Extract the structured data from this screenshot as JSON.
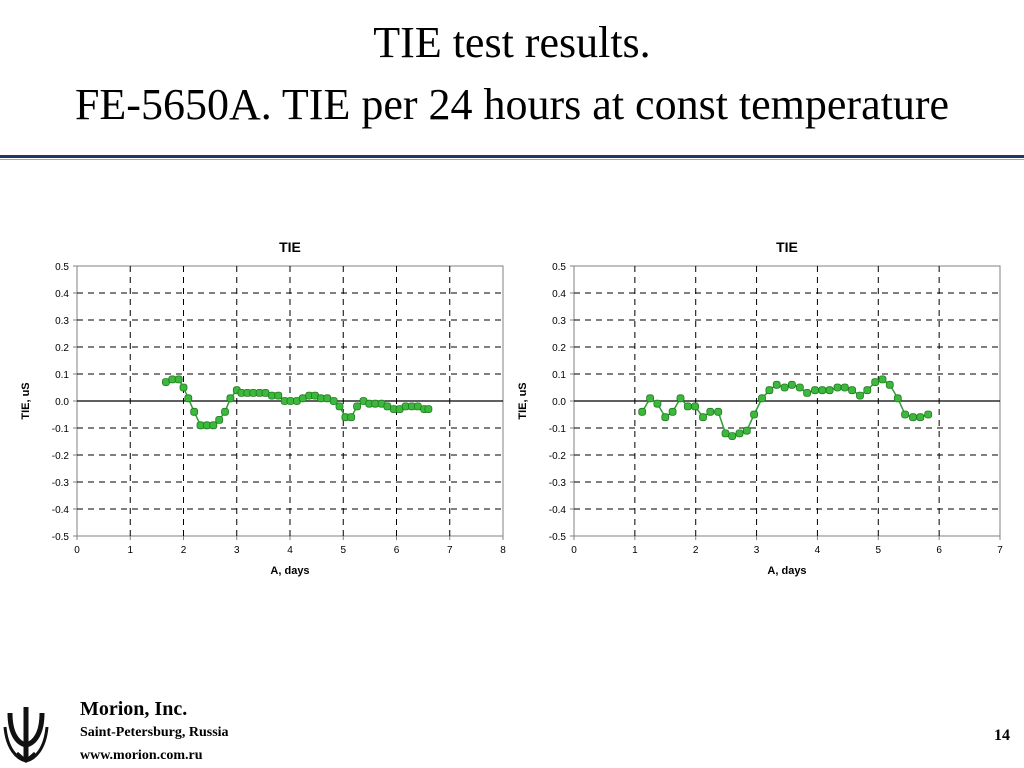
{
  "slide": {
    "title_line1": "TIE test results.",
    "title_line2": "FE-5650A. TIE per 24 hours at const temperature",
    "rule_color": "#1f3864",
    "page_number": "14"
  },
  "footer": {
    "company": "Morion, Inc.",
    "city": "Saint-Petersburg, Russia",
    "website": "www.morion.com.ru",
    "logo_icon": "morion-trident-logo"
  },
  "chart_data": [
    {
      "type": "scatter",
      "title": "TIE",
      "xlabel": "A, days",
      "ylabel": "TIE, uS",
      "xlim": [
        0,
        8
      ],
      "ylim": [
        -0.5,
        0.5
      ],
      "xticks": [
        0,
        1,
        2,
        3,
        4,
        5,
        6,
        7,
        8
      ],
      "yticks": [
        0.5,
        0.4,
        0.3,
        0.2,
        0.1,
        0.0,
        -0.1,
        -0.2,
        -0.3,
        -0.4,
        -0.5
      ],
      "ytick_labels": [
        "0.5",
        "0.4",
        "0.3",
        "0.2",
        "0.1",
        "0.0",
        "-0.1",
        "-0.2",
        "-0.3",
        "-0.4",
        "-0.5"
      ],
      "grid": "dashed",
      "legend": "none",
      "marker_color": "#3cb83c",
      "line_color": "#2e9e2e",
      "series": [
        {
          "x": [
            1.67,
            1.79,
            1.91,
            2.0,
            2.09,
            2.2,
            2.32,
            2.44,
            2.56,
            2.67,
            2.78,
            2.88,
            3.0,
            3.09,
            3.2,
            3.31,
            3.43,
            3.54,
            3.66,
            3.78,
            3.9,
            4.01,
            4.13,
            4.24,
            4.36,
            4.47,
            4.58,
            4.7,
            4.82,
            4.93,
            5.04,
            5.15,
            5.26,
            5.38,
            5.49,
            5.6,
            5.72,
            5.83,
            5.95,
            6.06,
            6.17,
            6.29,
            6.4,
            6.52,
            6.6
          ],
          "y": [
            0.07,
            0.08,
            0.08,
            0.05,
            0.01,
            -0.04,
            -0.09,
            -0.09,
            -0.09,
            -0.07,
            -0.04,
            0.01,
            0.04,
            0.03,
            0.03,
            0.03,
            0.03,
            0.03,
            0.02,
            0.02,
            0.0,
            0.0,
            0.0,
            0.01,
            0.02,
            0.02,
            0.01,
            0.01,
            0.0,
            -0.02,
            -0.06,
            -0.06,
            -0.02,
            0.0,
            -0.01,
            -0.01,
            -0.01,
            -0.02,
            -0.03,
            -0.03,
            -0.02,
            -0.02,
            -0.02,
            -0.03,
            -0.03
          ]
        }
      ]
    },
    {
      "type": "scatter",
      "title": "TIE",
      "xlabel": "A, days",
      "ylabel": "TIE, uS",
      "xlim": [
        0,
        7
      ],
      "ylim": [
        -0.5,
        0.5
      ],
      "xticks": [
        0,
        1,
        2,
        3,
        4,
        5,
        6,
        7
      ],
      "yticks": [
        0.5,
        0.4,
        0.3,
        0.2,
        0.1,
        0.0,
        -0.1,
        -0.2,
        -0.3,
        -0.4,
        -0.5
      ],
      "ytick_labels": [
        "0.5",
        "0.4",
        "0.3",
        "0.2",
        "0.1",
        "0.0",
        "-0.1",
        "-0.2",
        "-0.3",
        "-0.4",
        "-0.5"
      ],
      "grid": "dashed",
      "legend": "none",
      "marker_color": "#3cb83c",
      "line_color": "#2e9e2e",
      "series": [
        {
          "x": [
            1.12,
            1.25,
            1.37,
            1.5,
            1.62,
            1.75,
            1.87,
            1.99,
            2.12,
            2.24,
            2.37,
            2.49,
            2.6,
            2.72,
            2.84,
            2.96,
            3.09,
            3.21,
            3.33,
            3.46,
            3.58,
            3.71,
            3.83,
            3.96,
            4.08,
            4.2,
            4.33,
            4.45,
            4.57,
            4.7,
            4.82,
            4.95,
            5.07,
            5.19,
            5.32,
            5.44,
            5.57,
            5.69,
            5.82
          ],
          "y": [
            -0.04,
            0.01,
            -0.01,
            -0.06,
            -0.04,
            0.01,
            -0.02,
            -0.02,
            -0.06,
            -0.04,
            -0.04,
            -0.12,
            -0.13,
            -0.12,
            -0.11,
            -0.05,
            0.01,
            0.04,
            0.06,
            0.05,
            0.06,
            0.05,
            0.03,
            0.04,
            0.04,
            0.04,
            0.05,
            0.05,
            0.04,
            0.02,
            0.04,
            0.07,
            0.08,
            0.06,
            0.01,
            -0.05,
            -0.06,
            -0.06,
            -0.05
          ]
        }
      ]
    }
  ]
}
